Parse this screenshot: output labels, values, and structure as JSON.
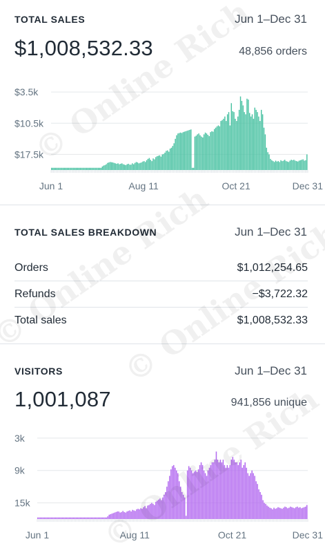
{
  "sales": {
    "title": "TOTAL SALES",
    "date_range": "Jun 1–Dec 31",
    "total": "$1,008,532.33",
    "count": "48,856 orders",
    "y_ticks": [
      "$17.5k",
      "$10.5k",
      "$3.5k"
    ],
    "x_ticks": [
      "Jun 1",
      "Aug 11",
      "Oct 21",
      "Dec 31"
    ],
    "bar_color": "#47c1a1"
  },
  "breakdown": {
    "title": "TOTAL SALES BREAKDOWN",
    "date_range": "Jun 1–Dec 31",
    "rows": [
      {
        "label": "Orders",
        "value": "$1,012,254.65"
      },
      {
        "label": "Refunds",
        "value": "−$3,722.32"
      },
      {
        "label": "Total sales",
        "value": "$1,008,532.33"
      }
    ]
  },
  "visitors": {
    "title": "VISITORS",
    "date_range": "Jun 1–Dec 31",
    "total": "1,001,087",
    "count": "941,856 unique",
    "y_ticks": [
      "15k",
      "9k",
      "3k"
    ],
    "x_ticks": [
      "Jun 1",
      "Aug 11",
      "Oct 21",
      "Dec 31"
    ],
    "bar_color": "#b46cf0"
  },
  "watermark": "© Online Rich",
  "chart_data": [
    {
      "type": "bar",
      "title": "TOTAL SALES",
      "x_range": [
        "Jun 1",
        "Dec 31"
      ],
      "xlabel": "",
      "ylabel": "",
      "ylim": [
        0,
        20000
      ],
      "y_ticks": [
        3500,
        10500,
        17500
      ],
      "grid": true,
      "series": [
        {
          "values": [
            500,
            500,
            500,
            500,
            500,
            500,
            500,
            500,
            500,
            500,
            500,
            500,
            500,
            500,
            500,
            500,
            500,
            500,
            500,
            500,
            500,
            500,
            500,
            500,
            500,
            500,
            500,
            500,
            500,
            500,
            500,
            500,
            500,
            500,
            500,
            500,
            500,
            500,
            500,
            800,
            1000,
            1100,
            1300,
            1600,
            1700,
            1800,
            1750,
            1700,
            1600,
            1500,
            1400,
            1500,
            1300,
            1400,
            1500,
            1300,
            1200,
            1100,
            1300,
            1400,
            1200,
            1200,
            1500,
            1300,
            1600,
            1800,
            1700,
            1500,
            1600,
            1700,
            1900,
            2000,
            1800,
            2200,
            2500,
            2700,
            2300,
            2000,
            2600,
            2400,
            2900,
            3100,
            3200,
            3300,
            3000,
            3500,
            3600,
            3900,
            4300,
            4400,
            4100,
            4800,
            5000,
            5400,
            6000,
            7000,
            7800,
            8200,
            8300,
            8400,
            8300,
            8500,
            8600,
            8700,
            8800,
            8900,
            9000,
            9100,
            500,
            500,
            7500,
            7700,
            8000,
            8200,
            7800,
            7500,
            7300,
            8000,
            8400,
            8200,
            7900,
            7600,
            8500,
            8700,
            8600,
            9200,
            9500,
            9800,
            10000,
            9800,
            11000,
            11200,
            11500,
            12000,
            11000,
            12500,
            13000,
            10000,
            15000,
            13200,
            13000,
            11500,
            11000,
            12000,
            13500,
            16500,
            15500,
            14500,
            13000,
            12500,
            16000,
            15800,
            12800,
            12000,
            12500,
            11500,
            14000,
            13500,
            13000,
            12000,
            11000,
            13500,
            12500,
            9500,
            8000,
            5000,
            4000,
            3500,
            2500,
            2200,
            2000,
            1800,
            2100,
            1900,
            2000,
            1800,
            2200,
            2000,
            2100,
            2300,
            2000,
            1900,
            1800,
            2100,
            2300,
            2200,
            2300,
            2100,
            2000,
            1900,
            2100,
            2200,
            2300,
            2400,
            2100,
            2200,
            3500
          ]
        }
      ]
    },
    {
      "type": "bar",
      "title": "VISITORS",
      "x_range": [
        "Jun 1",
        "Dec 31"
      ],
      "xlabel": "",
      "ylabel": "",
      "ylim": [
        0,
        16000
      ],
      "y_ticks": [
        3000,
        9000,
        15000
      ],
      "grid": true,
      "series": [
        {
          "values": [
            300,
            300,
            300,
            300,
            300,
            300,
            300,
            300,
            300,
            300,
            300,
            300,
            300,
            300,
            300,
            300,
            300,
            300,
            300,
            300,
            300,
            300,
            300,
            300,
            300,
            300,
            300,
            300,
            300,
            300,
            300,
            300,
            300,
            300,
            300,
            300,
            300,
            300,
            300,
            300,
            300,
            300,
            300,
            300,
            300,
            300,
            300,
            300,
            300,
            300,
            300,
            500,
            800,
            900,
            1000,
            1100,
            1200,
            1300,
            1400,
            1400,
            1200,
            1300,
            1500,
            1300,
            1200,
            1400,
            1500,
            1600,
            1400,
            1700,
            1600,
            1500,
            1800,
            1900,
            1800,
            2000,
            1900,
            2200,
            2400,
            2000,
            2500,
            2600,
            2800,
            3000,
            2800,
            2600,
            3200,
            3400,
            3600,
            3800,
            3500,
            4000,
            4500,
            5000,
            6000,
            7000,
            8000,
            9200,
            9800,
            10000,
            9500,
            9000,
            8500,
            7000,
            6000,
            5000,
            4500,
            4000,
            600,
            9000,
            9800,
            9500,
            9000,
            8500,
            8800,
            9000,
            8700,
            9200,
            10000,
            10500,
            10000,
            9000,
            8500,
            8000,
            9000,
            9500,
            10000,
            10500,
            10500,
            11000,
            12500,
            11000,
            10500,
            11000,
            10500,
            11000,
            10000,
            9500,
            10000,
            9500,
            10000,
            11000,
            11500,
            11000,
            10500,
            10500,
            10000,
            10500,
            11000,
            9500,
            10000,
            10500,
            9500,
            8500,
            8000,
            8500,
            9000,
            8500,
            8000,
            7000,
            6500,
            5500,
            5000,
            4500,
            3500,
            3000,
            2800,
            2500,
            2300,
            2100,
            2000,
            1800,
            2100,
            1900,
            2000,
            2200,
            2100,
            2000,
            1900,
            2100,
            2300,
            2200,
            2000,
            2100,
            2300,
            2200,
            2100,
            2000,
            2200,
            2300,
            2100,
            2200,
            2000,
            2100,
            2200,
            2300,
            2600
          ]
        }
      ]
    }
  ]
}
